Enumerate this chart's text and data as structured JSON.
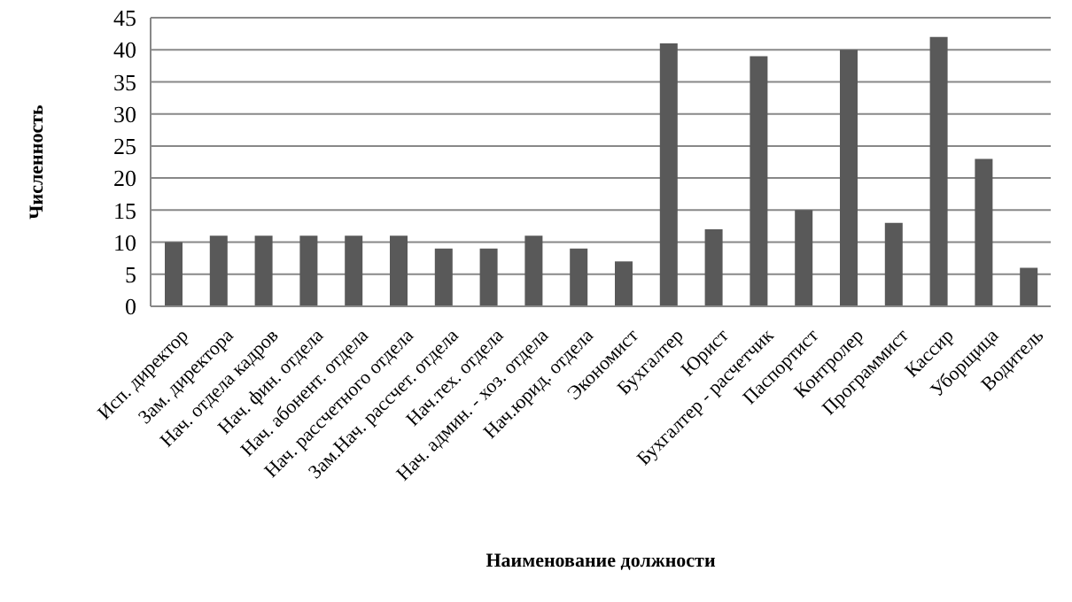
{
  "chart_data": {
    "type": "bar",
    "xlabel": "Наименование должности",
    "ylabel": "Численность",
    "categories": [
      "Исп. директор",
      "Зам. директора",
      "Нач. отдела кадров",
      "Нач. фин. отдела",
      "Нач. абонент. отдела",
      "Нач. рассчетного отдела",
      "Зам.Нач. рассчет. отдела",
      "Нач.тех. отдела",
      "Нач. админ. - хоз. отдела",
      "Нач.юрид. отдела",
      "Экономист",
      "Бухгалтер",
      "Юрист",
      "Бухгалтер - расчетчик",
      "Паспортист",
      "Контролер",
      "Программист",
      "Кассир",
      "Уборщица",
      "Водитель"
    ],
    "values": [
      10,
      11,
      11,
      11,
      11,
      11,
      9,
      9,
      11,
      9,
      7,
      41,
      12,
      39,
      15,
      40,
      13,
      42,
      23,
      6
    ],
    "color": "#595959",
    "ylim": [
      0,
      45
    ],
    "yticks": [
      0,
      5,
      10,
      15,
      20,
      25,
      30,
      35,
      40,
      45
    ],
    "grid": "y"
  }
}
